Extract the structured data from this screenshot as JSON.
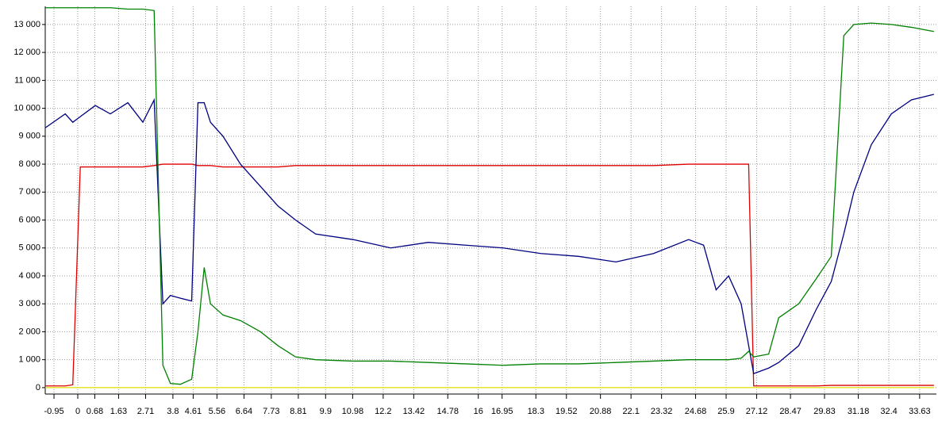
{
  "chart_data": {
    "type": "line",
    "x": [
      -1.3,
      -0.5,
      -0.2,
      0.1,
      0.7,
      1.3,
      2.0,
      2.6,
      3.05,
      3.4,
      3.7,
      4.1,
      4.55,
      4.8,
      5.05,
      5.3,
      5.8,
      6.5,
      7.3,
      8,
      8.7,
      9.5,
      11,
      12.5,
      14,
      15.5,
      17,
      18.5,
      20,
      21.5,
      23,
      24.4,
      25,
      25.5,
      26,
      26.5,
      26.8,
      27.0,
      27.6,
      28,
      28.8,
      29.5,
      30.1,
      30.6,
      31,
      31.7,
      32.5,
      33.3,
      34.2
    ],
    "series": [
      {
        "color": "#008000",
        "values": [
          13600,
          13600,
          13600,
          13600,
          13600,
          13600,
          13550,
          13550,
          13500,
          800,
          150,
          120,
          300,
          2000,
          4300,
          3000,
          2600,
          2400,
          2000,
          1500,
          1100,
          1000,
          950,
          950,
          900,
          850,
          800,
          850,
          850,
          900,
          950,
          1000,
          1000,
          1000,
          1000,
          1050,
          1300,
          1100,
          1200,
          2500,
          3000,
          3900,
          4700,
          12600,
          13000,
          13050,
          13000,
          12900,
          12750
        ]
      },
      {
        "color": "#000080",
        "values": [
          9300,
          9800,
          9500,
          9700,
          10100,
          9800,
          10200,
          9500,
          10300,
          3000,
          3300,
          3200,
          3100,
          10200,
          10200,
          9500,
          9000,
          8000,
          7200,
          6500,
          6000,
          5500,
          5300,
          5000,
          5200,
          5100,
          5000,
          4800,
          4700,
          4500,
          4800,
          5300,
          5100,
          3500,
          4000,
          3000,
          1500,
          500,
          700,
          900,
          1500,
          2800,
          3800,
          5500,
          7000,
          8700,
          9800,
          10300,
          10500
        ]
      },
      {
        "color": "#e00000",
        "values": [
          60,
          60,
          100,
          7900,
          7900,
          7900,
          7900,
          7900,
          7950,
          8000,
          8000,
          8000,
          8000,
          7950,
          7950,
          7950,
          7900,
          7900,
          7900,
          7900,
          7950,
          7950,
          7950,
          7950,
          7950,
          7950,
          7950,
          7950,
          7950,
          7950,
          7950,
          8000,
          8000,
          8000,
          8000,
          8000,
          8000,
          60,
          60,
          60,
          60,
          60,
          80,
          80,
          80,
          80,
          80,
          80,
          80
        ]
      },
      {
        "color": "#e0e000",
        "values": [
          0,
          0,
          0,
          0,
          0,
          0,
          0,
          0,
          0,
          0,
          0,
          0,
          0,
          0,
          0,
          0,
          0,
          0,
          0,
          0,
          0,
          0,
          0,
          0,
          0,
          0,
          0,
          0,
          0,
          0,
          0,
          0,
          0,
          0,
          0,
          0,
          0,
          0,
          0,
          0,
          0,
          0,
          0,
          0,
          0,
          0,
          0,
          0,
          0
        ]
      }
    ],
    "xlim": [
      -1.3,
      34.3
    ],
    "xticks": [
      -0.95,
      0,
      0.68,
      1.63,
      2.71,
      3.8,
      4.61,
      5.56,
      6.64,
      7.73,
      8.81,
      9.9,
      10.98,
      12.2,
      13.42,
      14.78,
      16,
      16.95,
      18.3,
      19.52,
      20.88,
      22.1,
      23.32,
      24.68,
      25.9,
      27.12,
      28.47,
      29.83,
      31.18,
      32.4,
      33.63
    ],
    "ylim": [
      -230,
      13650
    ],
    "yticks": [
      0,
      {
        "value": 1000,
        "label": "1 000"
      },
      {
        "value": 2000,
        "label": "2 000"
      },
      {
        "value": 3000,
        "label": "3 000"
      },
      {
        "value": 4000,
        "label": "4 000"
      },
      {
        "value": 5000,
        "label": "5 000"
      },
      {
        "value": 6000,
        "label": "6 000"
      },
      {
        "value": 7000,
        "label": "7 000"
      },
      {
        "value": 8000,
        "label": "8 000"
      },
      {
        "value": 9000,
        "label": "9 000"
      },
      {
        "value": 10000,
        "label": "10 000"
      },
      {
        "value": 11000,
        "label": "11 000"
      },
      {
        "value": 12000,
        "label": "12 000"
      },
      {
        "value": 13000,
        "label": "13 000"
      }
    ],
    "grid": true
  }
}
